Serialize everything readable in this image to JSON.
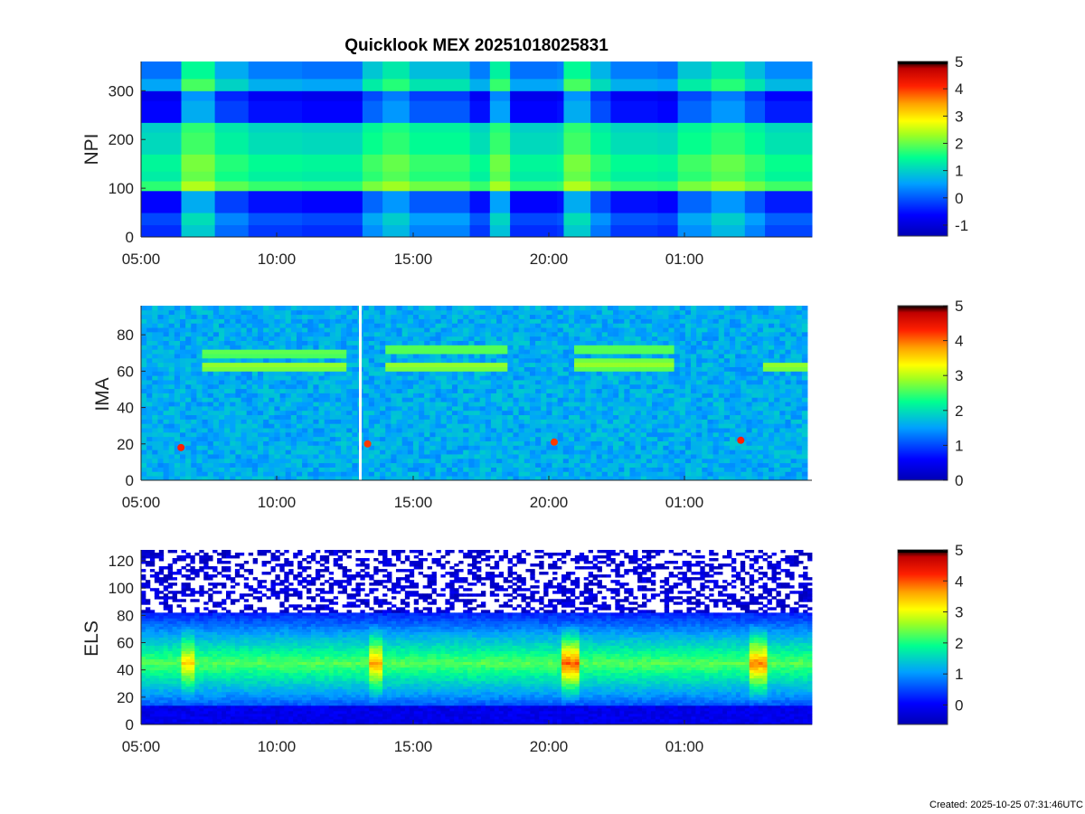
{
  "figure": {
    "title": "Quicklook MEX 20251018025831",
    "created": "Created: 2025-10-25 07:31:46UTC"
  },
  "chart_data": [
    {
      "type": "heatmap",
      "ylabel": "NPI",
      "xticks": [
        "05:00",
        "10:00",
        "15:00",
        "20:00",
        "01:00"
      ],
      "yticks": [
        0,
        100,
        200,
        300
      ],
      "ylim": [
        0,
        360
      ],
      "colorbar": {
        "ticks": [
          -1,
          0,
          1,
          2,
          3,
          4,
          5
        ],
        "range": [
          -1.4,
          5
        ]
      },
      "x_segment_edges": [
        0,
        0.06,
        0.11,
        0.16,
        0.24,
        0.33,
        0.36,
        0.4,
        0.49,
        0.52,
        0.55,
        0.62,
        0.63,
        0.67,
        0.7,
        0.77,
        0.8,
        0.85,
        0.9,
        0.93,
        1.0
      ],
      "x_segment_levels": [
        0.2,
        1.6,
        0.7,
        0.3,
        0.2,
        1.0,
        1.4,
        0.9,
        0.3,
        1.5,
        0.2,
        0.3,
        1.6,
        0.8,
        0.3,
        0.2,
        1.0,
        1.4,
        0.9,
        0.4
      ],
      "y_band_edges": [
        0,
        25,
        50,
        95,
        115,
        135,
        170,
        215,
        235,
        280,
        300,
        325,
        360
      ],
      "y_band_levels": [
        -0.5,
        -0.3,
        -0.8,
        1.6,
        1.2,
        1.3,
        1.0,
        0.9,
        -0.8,
        -1.0,
        0.4,
        0.0
      ]
    },
    {
      "type": "heatmap",
      "ylabel": "IMA",
      "xticks": [
        "05:00",
        "10:00",
        "15:00",
        "20:00",
        "01:00"
      ],
      "yticks": [
        0,
        20,
        40,
        60,
        80
      ],
      "ylim": [
        0,
        96
      ],
      "colorbar": {
        "ticks": [
          0,
          1,
          2,
          3,
          4,
          5
        ],
        "range": [
          0,
          5
        ]
      },
      "background_level": 1.6,
      "bands": [
        {
          "x": [
            0.09,
            0.31
          ],
          "y": 63,
          "width": 6,
          "level": 2.9
        },
        {
          "x": [
            0.09,
            0.31
          ],
          "y": 70,
          "width": 4,
          "level": 2.7
        },
        {
          "x": [
            0.37,
            0.55
          ],
          "y": 63,
          "width": 6,
          "level": 2.9
        },
        {
          "x": [
            0.37,
            0.55
          ],
          "y": 72,
          "width": 4,
          "level": 2.7
        },
        {
          "x": [
            0.65,
            0.8
          ],
          "y": 64,
          "width": 6,
          "level": 2.9
        },
        {
          "x": [
            0.65,
            0.8
          ],
          "y": 72,
          "width": 4,
          "level": 2.7
        },
        {
          "x": [
            0.93,
            1.0
          ],
          "y": 63,
          "width": 6,
          "level": 2.9
        }
      ],
      "hotspots": [
        {
          "x": 0.06,
          "y": 18,
          "level": 4.3
        },
        {
          "x": 0.34,
          "y": 20,
          "level": 4.2
        },
        {
          "x": 0.62,
          "y": 21,
          "level": 4.2
        },
        {
          "x": 0.9,
          "y": 22,
          "level": 4.3
        }
      ],
      "gaps": [
        {
          "x": 0.327
        }
      ]
    },
    {
      "type": "heatmap",
      "ylabel": "ELS",
      "xticks": [
        "05:00",
        "10:00",
        "15:00",
        "20:00",
        "01:00"
      ],
      "yticks": [
        0,
        20,
        40,
        60,
        80,
        100,
        120
      ],
      "ylim": [
        0,
        128
      ],
      "colorbar": {
        "ticks": [
          0,
          1,
          2,
          3,
          4,
          5
        ],
        "range": [
          -0.6,
          5
        ]
      },
      "noise_floor": 82,
      "peak_y": 45,
      "bursts": [
        {
          "x": 0.07,
          "level": 3.0
        },
        {
          "x": 0.35,
          "level": 3.3
        },
        {
          "x": 0.64,
          "level": 3.7
        },
        {
          "x": 0.92,
          "level": 3.5
        }
      ]
    }
  ]
}
